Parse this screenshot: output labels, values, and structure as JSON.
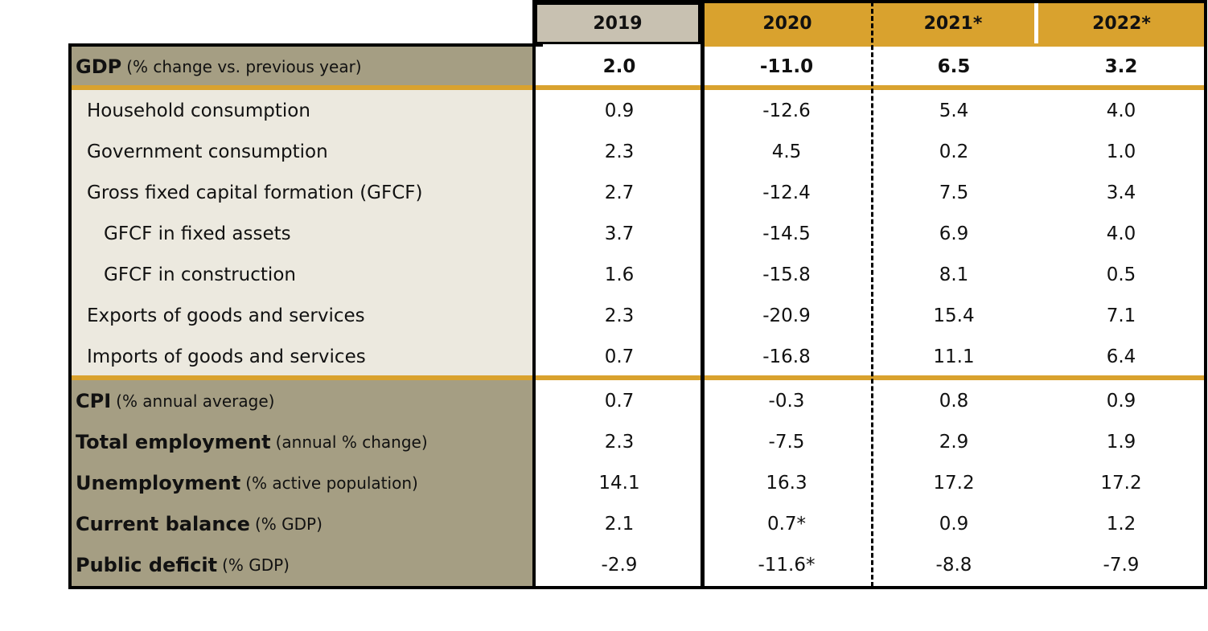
{
  "chart_data": {
    "type": "table",
    "columns": [
      "2019",
      "2020",
      "2021*",
      "2022*"
    ],
    "header_colors": [
      "#c8c1b1",
      "#d9a22e",
      "#d9a22e",
      "#d9a22e"
    ],
    "label_panel_colors": {
      "main": "#a59e83",
      "sub": "#ece9df",
      "accent_line": "#d9a22e"
    },
    "rows": [
      {
        "label": "GDP",
        "note": "(% change vs. previous year)",
        "bold": true,
        "values": [
          "2.0",
          "-11.0",
          "6.5",
          "3.2"
        ]
      },
      {
        "label": "Household consumption",
        "values": [
          "0.9",
          "-12.6",
          "5.4",
          "4.0"
        ]
      },
      {
        "label": "Government consumption",
        "values": [
          "2.3",
          "4.5",
          "0.2",
          "1.0"
        ]
      },
      {
        "label": "Gross fixed capital formation (GFCF)",
        "values": [
          "2.7",
          "-12.4",
          "7.5",
          "3.4"
        ]
      },
      {
        "label": "GFCF in fixed assets",
        "indent": 2,
        "values": [
          "3.7",
          "-14.5",
          "6.9",
          "4.0"
        ]
      },
      {
        "label": "GFCF in construction",
        "indent": 2,
        "values": [
          "1.6",
          "-15.8",
          "8.1",
          "0.5"
        ]
      },
      {
        "label": "Exports of goods and services",
        "values": [
          "2.3",
          "-20.9",
          "15.4",
          "7.1"
        ]
      },
      {
        "label": "Imports of goods and services",
        "values": [
          "0.7",
          "-16.8",
          "11.1",
          "6.4"
        ]
      },
      {
        "label": "CPI",
        "note": "(% annual average)",
        "bold": true,
        "values": [
          "0.7",
          "-0.3",
          "0.8",
          "0.9"
        ]
      },
      {
        "label": "Total employment",
        "note": "(annual % change)",
        "bold": true,
        "values": [
          "2.3",
          "-7.5",
          "2.9",
          "1.9"
        ]
      },
      {
        "label": "Unemployment",
        "note": "(% active population)",
        "bold": true,
        "values": [
          "14.1",
          "16.3",
          "17.2",
          "17.2"
        ]
      },
      {
        "label": "Current balance",
        "note": "(% GDP)",
        "bold": true,
        "values": [
          "2.1",
          "0.7*",
          "0.9",
          "1.2"
        ]
      },
      {
        "label": "Public deficit",
        "note": "(% GDP)",
        "bold": true,
        "values": [
          "-2.9",
          "-11.6*",
          "-8.8",
          "-7.9"
        ]
      }
    ]
  }
}
